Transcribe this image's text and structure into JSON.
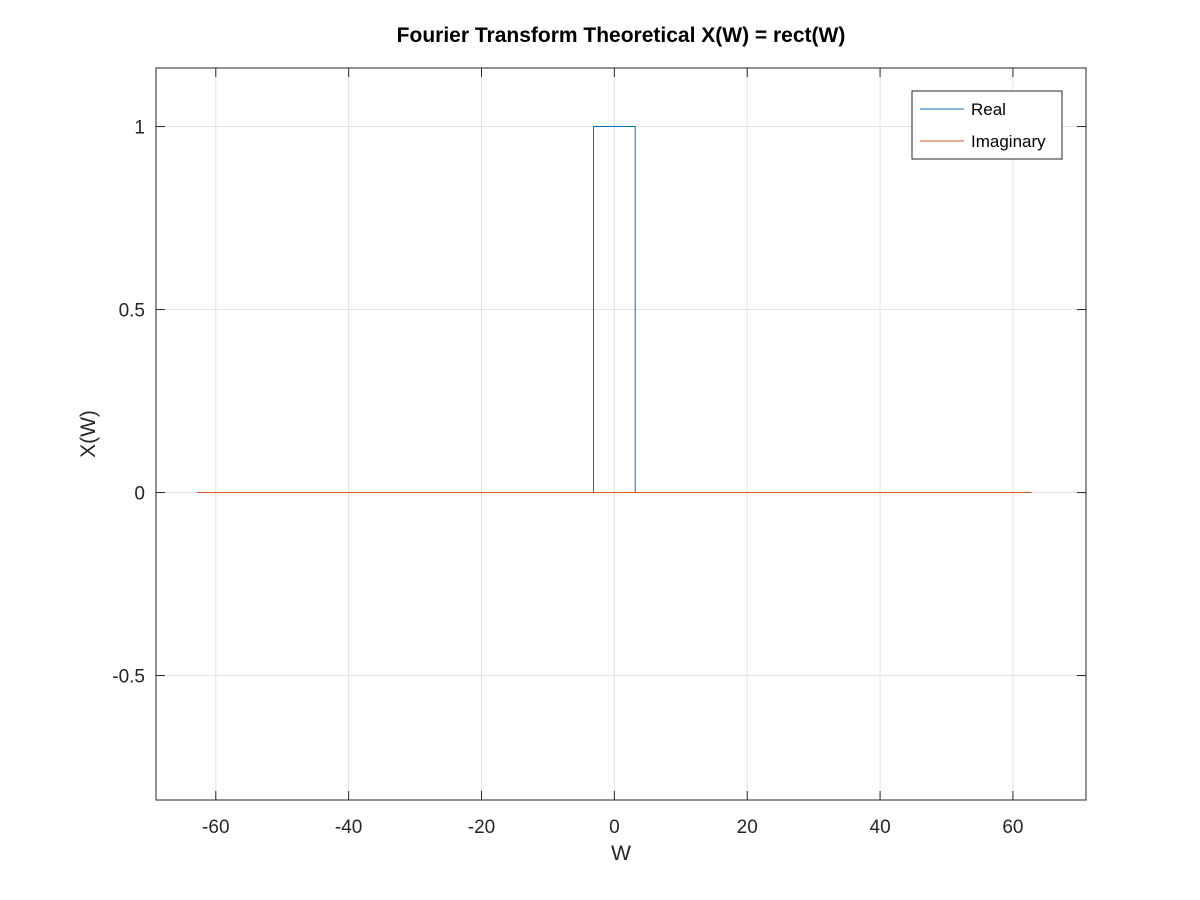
{
  "chart_data": {
    "type": "line",
    "title": "Fourier Transform Theoretical X(W) = rect(W)",
    "xlabel": "W",
    "ylabel": "X(W)",
    "xlim": [
      -69,
      71
    ],
    "ylim": [
      -0.84,
      1.16
    ],
    "xticks": [
      -60,
      -40,
      -20,
      0,
      20,
      40,
      60
    ],
    "yticks": [
      -0.5,
      0,
      0.5,
      1
    ],
    "xtick_labels": [
      "-60",
      "-40",
      "-20",
      "0",
      "20",
      "40",
      "60"
    ],
    "ytick_labels": [
      "-0.5",
      "0",
      "0.5",
      "1"
    ],
    "grid": true,
    "legend": {
      "position": "top-right",
      "entries": [
        "Real",
        "Imaginary"
      ]
    },
    "series": [
      {
        "name": "Real",
        "color": "#0072bd",
        "x": [
          -62.8,
          -3.14,
          -3.14,
          3.14,
          3.14,
          62.8
        ],
        "y": [
          0,
          0,
          1,
          1,
          0,
          0
        ]
      },
      {
        "name": "Imaginary",
        "color": "#d95319",
        "x": [
          -62.8,
          62.8
        ],
        "y": [
          0,
          0
        ]
      }
    ]
  }
}
